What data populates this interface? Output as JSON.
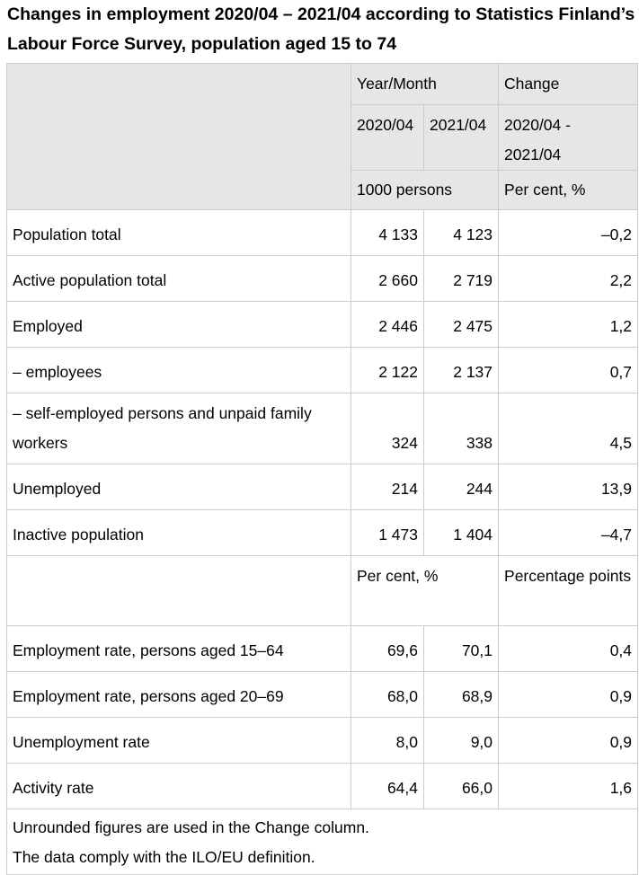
{
  "title": "Changes in employment 2020/04 – 2021/04 according to Statistics Finland’s Labour Force Survey, population aged 15 to 74",
  "header": {
    "year_month": "Year/Month",
    "change": "Change",
    "col_2020": "2020/04",
    "col_2021": "2021/04",
    "col_change": "2020/04 - 2021/04",
    "unit_persons": "1000 persons",
    "unit_percent": "Per cent, %"
  },
  "rows": [
    {
      "label": "Population total",
      "v2020": "4 133",
      "v2021": "4 123",
      "change": "–0,2"
    },
    {
      "label": "Active population total",
      "v2020": "2 660",
      "v2021": "2 719",
      "change": "2,2"
    },
    {
      "label": "Employed",
      "v2020": "2 446",
      "v2021": "2 475",
      "change": "1,2"
    },
    {
      "label": "– employees",
      "v2020": "2 122",
      "v2021": "2 137",
      "change": "0,7"
    },
    {
      "label": "– self-employed persons and unpaid family workers",
      "v2020": "324",
      "v2021": "338",
      "change": "4,5"
    },
    {
      "label": "Unemployed",
      "v2020": "214",
      "v2021": "244",
      "change": "13,9"
    },
    {
      "label": "Inactive population",
      "v2020": "1 473",
      "v2021": "1 404",
      "change": "–4,7"
    }
  ],
  "subheader": {
    "per_cent": "Per cent, %",
    "percentage_points": "Percentage points"
  },
  "rate_rows": [
    {
      "label": "Employment rate, persons aged 15–64",
      "v2020": "69,6",
      "v2021": "70,1",
      "change": "0,4"
    },
    {
      "label": "Employment rate, persons aged 20–69",
      "v2020": "68,0",
      "v2021": "68,9",
      "change": "0,9"
    },
    {
      "label": "Unemployment rate",
      "v2020": "8,0",
      "v2021": "9,0",
      "change": "0,9"
    },
    {
      "label": "Activity rate",
      "v2020": "64,4",
      "v2021": "66,0",
      "change": "1,6"
    }
  ],
  "footnotes": [
    "Unrounded figures are used in the Change column.",
    "The data comply with the ILO/EU definition."
  ]
}
